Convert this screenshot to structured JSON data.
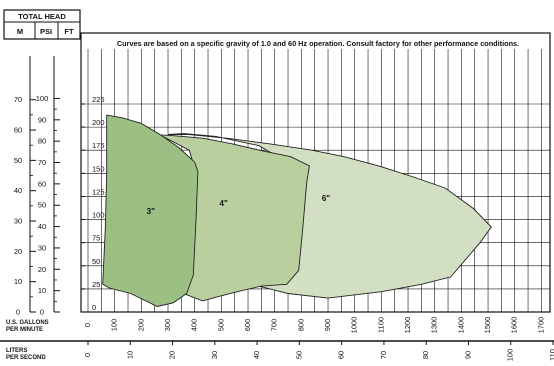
{
  "chart_data": {
    "type": "area",
    "note": "Curves are based on a specific gravity of 1.0 and 60 Hz operation. Consult factory for other performance conditions.",
    "header": {
      "title": "TOTAL HEAD",
      "col_m": "M",
      "col_psi": "PSI",
      "col_ft": "FT"
    },
    "x_axis": {
      "label_gpm_line1": "U.S. GALLONS",
      "label_gpm_line2": "PER MINUTE",
      "ticks_gpm": [
        0,
        100,
        200,
        300,
        400,
        500,
        600,
        700,
        800,
        900,
        1000,
        1100,
        1200,
        1300,
        1400,
        1500,
        1600,
        1700
      ],
      "label_lps_line1": "LITERS",
      "label_lps_line2": "PER SECOND",
      "ticks_lps": [
        0,
        10,
        20,
        30,
        40,
        50,
        60,
        70,
        80,
        90,
        100,
        110
      ]
    },
    "y_axis": {
      "ft_ticks": [
        0,
        25,
        50,
        75,
        100,
        125,
        150,
        175,
        200,
        225
      ],
      "psi_ticks": [
        0,
        10,
        20,
        30,
        40,
        50,
        60,
        70,
        80,
        90,
        100
      ],
      "m_ticks": [
        0,
        10,
        20,
        30,
        40,
        50,
        60,
        70
      ]
    },
    "xlim": [
      0,
      1750
    ],
    "ylim_ft": [
      0,
      255
    ],
    "grid": true,
    "series": [
      {
        "name": "6\"",
        "color": "#d2dfc3",
        "outline": [
          [
            300,
            192
          ],
          [
            380,
            192
          ],
          [
            520,
            188
          ],
          [
            680,
            182
          ],
          [
            840,
            175
          ],
          [
            960,
            168
          ],
          [
            1090,
            158
          ],
          [
            1220,
            146
          ],
          [
            1340,
            134
          ],
          [
            1445,
            112
          ],
          [
            1512,
            92
          ],
          [
            1470,
            75
          ],
          [
            1360,
            38
          ],
          [
            1250,
            30
          ],
          [
            1100,
            22
          ],
          [
            900,
            15
          ],
          [
            750,
            20
          ],
          [
            640,
            28
          ],
          [
            710,
            70
          ],
          [
            740,
            120
          ],
          [
            730,
            165
          ],
          [
            640,
            180
          ],
          [
            480,
            190
          ],
          [
            360,
            193
          ]
        ]
      },
      {
        "name": "4\"",
        "color": "#b9d09e",
        "outline": [
          [
            160,
            193
          ],
          [
            310,
            191
          ],
          [
            430,
            188
          ],
          [
            540,
            182
          ],
          [
            660,
            174
          ],
          [
            760,
            168
          ],
          [
            830,
            158
          ],
          [
            820,
            140
          ],
          [
            805,
            90
          ],
          [
            790,
            45
          ],
          [
            745,
            30
          ],
          [
            650,
            28
          ],
          [
            560,
            22
          ],
          [
            480,
            16
          ],
          [
            430,
            12
          ],
          [
            340,
            22
          ],
          [
            240,
            36
          ],
          [
            380,
            120
          ],
          [
            400,
            155
          ],
          [
            380,
            175
          ],
          [
            280,
            190
          ],
          [
            200,
            193
          ]
        ]
      },
      {
        "name": "3\"",
        "color": "#9cbf84",
        "outline": [
          [
            70,
            213
          ],
          [
            130,
            210
          ],
          [
            200,
            204
          ],
          [
            270,
            192
          ],
          [
            340,
            178
          ],
          [
            400,
            162
          ],
          [
            412,
            152
          ],
          [
            405,
            100
          ],
          [
            395,
            40
          ],
          [
            370,
            20
          ],
          [
            320,
            10
          ],
          [
            260,
            6
          ],
          [
            160,
            20
          ],
          [
            80,
            26
          ],
          [
            55,
            30
          ],
          [
            65,
            90
          ],
          [
            70,
            150
          ]
        ]
      }
    ]
  }
}
